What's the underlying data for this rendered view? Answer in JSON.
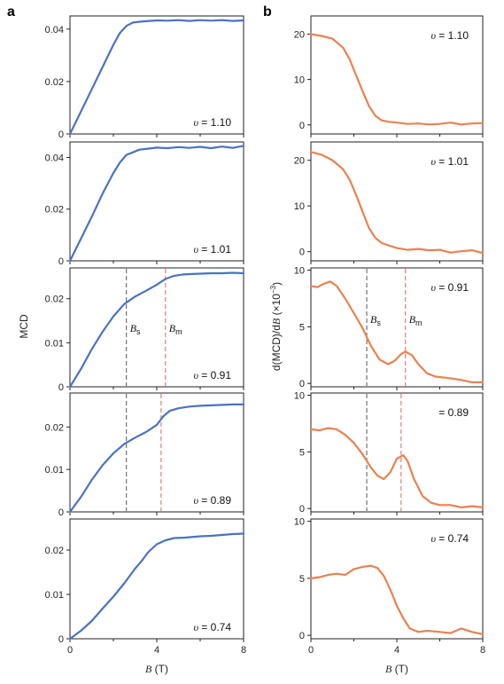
{
  "figure": {
    "panel_labels": [
      "a",
      "b"
    ],
    "left_ylabel": "MCD",
    "right_ylabel_parts": [
      "d(MCD)/d",
      "B",
      " (×10",
      "−3",
      ")"
    ],
    "xlabel_parts": [
      "B",
      " (T)"
    ],
    "colors": {
      "left_line": "#4a72c4",
      "right_line": "#e8824f",
      "bs_line": "#555555",
      "bm_line": "#e06060"
    }
  },
  "chart_data": [
    {
      "type": "line",
      "panel": "a",
      "row": 0,
      "annotation": {
        "symbol": "υ",
        "text": " = 1.10"
      },
      "xlim": [
        0,
        8
      ],
      "xticks": [
        "0",
        "4",
        "8"
      ],
      "ylim": [
        0,
        0.045
      ],
      "yticks": [
        {
          "v": 0,
          "label": "0"
        },
        {
          "v": 0.02,
          "label": "0.02"
        },
        {
          "v": 0.04,
          "label": "0.04"
        }
      ],
      "x": [
        0,
        0.5,
        1,
        1.5,
        2,
        2.3,
        2.6,
        2.9,
        3.2,
        3.5,
        4,
        4.5,
        5,
        5.5,
        6,
        6.5,
        7,
        7.5,
        8
      ],
      "y": [
        0,
        0.0085,
        0.017,
        0.0255,
        0.034,
        0.0385,
        0.0412,
        0.0425,
        0.0428,
        0.043,
        0.0433,
        0.0432,
        0.0434,
        0.0431,
        0.0434,
        0.0432,
        0.0434,
        0.0431,
        0.0433
      ]
    },
    {
      "type": "line",
      "panel": "a",
      "row": 1,
      "annotation": {
        "symbol": "υ",
        "text": " = 1.01"
      },
      "xlim": [
        0,
        8
      ],
      "xticks": [
        "0",
        "4",
        "8"
      ],
      "ylim": [
        0,
        0.046
      ],
      "yticks": [
        {
          "v": 0,
          "label": "0"
        },
        {
          "v": 0.02,
          "label": "0.02"
        },
        {
          "v": 0.04,
          "label": "0.04"
        }
      ],
      "x": [
        0,
        0.5,
        1,
        1.5,
        2,
        2.3,
        2.6,
        2.9,
        3.2,
        3.5,
        4,
        4.5,
        5,
        5.5,
        6,
        6.5,
        7,
        7.5,
        8
      ],
      "y": [
        0,
        0.0085,
        0.017,
        0.026,
        0.034,
        0.038,
        0.041,
        0.042,
        0.043,
        0.0433,
        0.0438,
        0.0436,
        0.044,
        0.0437,
        0.0441,
        0.0436,
        0.0442,
        0.0437,
        0.0445
      ]
    },
    {
      "type": "line",
      "panel": "a",
      "row": 2,
      "annotation": {
        "symbol": "υ",
        "text": " = 0.91"
      },
      "markers": [
        {
          "label": "B",
          "sub": "s",
          "x": 2.6
        },
        {
          "label": "B",
          "sub": "m",
          "x": 4.4
        }
      ],
      "xlim": [
        0,
        8
      ],
      "xticks": [
        "0",
        "4",
        "8"
      ],
      "ylim": [
        0,
        0.027
      ],
      "yticks": [
        {
          "v": 0,
          "label": "0"
        },
        {
          "v": 0.01,
          "label": "0.01"
        },
        {
          "v": 0.02,
          "label": "0.02"
        }
      ],
      "x": [
        0,
        0.5,
        1,
        1.5,
        2,
        2.5,
        3,
        3.5,
        4,
        4.4,
        4.8,
        5.2,
        5.6,
        6,
        6.5,
        7,
        7.5,
        8
      ],
      "y": [
        0,
        0.004,
        0.0085,
        0.0125,
        0.016,
        0.0188,
        0.0205,
        0.0218,
        0.0232,
        0.0245,
        0.0252,
        0.0255,
        0.0256,
        0.0257,
        0.0258,
        0.0258,
        0.0259,
        0.0258
      ]
    },
    {
      "type": "line",
      "panel": "a",
      "row": 3,
      "annotation": {
        "symbol": "υ",
        "text": " = 0.89"
      },
      "markers": [
        {
          "x": 2.6
        },
        {
          "x": 4.2
        }
      ],
      "xlim": [
        0,
        8
      ],
      "xticks": [
        "0",
        "4",
        "8"
      ],
      "ylim": [
        0,
        0.028
      ],
      "yticks": [
        {
          "v": 0,
          "label": "0"
        },
        {
          "v": 0.01,
          "label": "0.01"
        },
        {
          "v": 0.02,
          "label": "0.02"
        }
      ],
      "x": [
        0,
        0.5,
        1,
        1.5,
        2,
        2.5,
        3,
        3.5,
        4,
        4.3,
        4.6,
        5,
        5.5,
        6,
        6.5,
        7,
        7.5,
        8
      ],
      "y": [
        0,
        0.0035,
        0.0075,
        0.011,
        0.0138,
        0.016,
        0.0175,
        0.0188,
        0.0205,
        0.0225,
        0.0238,
        0.0244,
        0.0248,
        0.025,
        0.0251,
        0.0252,
        0.0253,
        0.0253
      ]
    },
    {
      "type": "line",
      "panel": "a",
      "row": 4,
      "annotation": {
        "symbol": "υ",
        "text": " = 0.74"
      },
      "xlim": [
        0,
        8
      ],
      "xticks": [
        "0",
        "4",
        "8"
      ],
      "ylim": [
        0,
        0.027
      ],
      "yticks": [
        {
          "v": 0,
          "label": "0"
        },
        {
          "v": 0.01,
          "label": "0.01"
        },
        {
          "v": 0.02,
          "label": "0.02"
        }
      ],
      "x": [
        0,
        0.5,
        1,
        1.5,
        2,
        2.5,
        3,
        3.3,
        3.6,
        4,
        4.4,
        4.8,
        5.3,
        6,
        6.5,
        7,
        7.5,
        8
      ],
      "y": [
        0,
        0.0018,
        0.004,
        0.0068,
        0.0095,
        0.0125,
        0.0158,
        0.0175,
        0.0195,
        0.0213,
        0.0222,
        0.0227,
        0.0228,
        0.0231,
        0.0232,
        0.0234,
        0.0236,
        0.0237
      ]
    },
    {
      "type": "line",
      "panel": "b",
      "row": 0,
      "annotation": {
        "symbol": "υ",
        "text": " = 1.10"
      },
      "xlim": [
        0,
        8
      ],
      "xticks": [
        "0",
        "4",
        "8"
      ],
      "ylim": [
        -2,
        24
      ],
      "yticks": [
        {
          "v": 0,
          "label": "0"
        },
        {
          "v": 10,
          "label": "10"
        },
        {
          "v": 20,
          "label": "20"
        }
      ],
      "x": [
        0,
        0.5,
        1,
        1.5,
        1.8,
        2.1,
        2.4,
        2.7,
        3,
        3.3,
        3.6,
        4,
        4.5,
        5,
        5.5,
        6,
        6.5,
        7,
        7.5,
        8
      ],
      "y": [
        20,
        19.6,
        19,
        17,
        14.5,
        11,
        7.5,
        4.2,
        2,
        1,
        0.7,
        0.5,
        0.2,
        0.3,
        0.1,
        0.2,
        0.5,
        0.1,
        0.3,
        0.4
      ]
    },
    {
      "type": "line",
      "panel": "b",
      "row": 1,
      "annotation": {
        "symbol": "υ",
        "text": " = 1.01"
      },
      "xlim": [
        0,
        8
      ],
      "xticks": [
        "0",
        "4",
        "8"
      ],
      "ylim": [
        -2,
        24
      ],
      "yticks": [
        {
          "v": 0,
          "label": "0"
        },
        {
          "v": 10,
          "label": "10"
        },
        {
          "v": 20,
          "label": "20"
        }
      ],
      "x": [
        0,
        0.5,
        1,
        1.5,
        1.8,
        2.1,
        2.4,
        2.7,
        3,
        3.3,
        3.6,
        4,
        4.5,
        5,
        5.5,
        6,
        6.5,
        7,
        7.5,
        8
      ],
      "y": [
        21.8,
        21.2,
        20,
        18,
        15.8,
        12.5,
        8.8,
        5.2,
        3,
        1.9,
        1.4,
        0.8,
        0.4,
        0.6,
        0.3,
        0.4,
        -0.2,
        0.1,
        0.3,
        -0.3
      ]
    },
    {
      "type": "line",
      "panel": "b",
      "row": 2,
      "annotation": {
        "symbol": "υ",
        "text": " = 0.91"
      },
      "markers": [
        {
          "label": "B",
          "sub": "s",
          "x": 2.6
        },
        {
          "label": "B",
          "sub": "m",
          "x": 4.4
        }
      ],
      "xlim": [
        0,
        8
      ],
      "xticks": [
        "0",
        "4",
        "8"
      ],
      "ylim": [
        -0.3,
        10.2
      ],
      "yticks": [
        {
          "v": 0,
          "label": "0"
        },
        {
          "v": 5,
          "label": "5"
        },
        {
          "v": 10,
          "label": "10"
        }
      ],
      "x": [
        0,
        0.3,
        0.6,
        0.9,
        1.2,
        1.6,
        2,
        2.4,
        2.8,
        3.2,
        3.6,
        3.9,
        4.2,
        4.4,
        4.7,
        5,
        5.4,
        5.8,
        6.3,
        7,
        7.5,
        8
      ],
      "y": [
        8.6,
        8.5,
        8.8,
        9.0,
        8.6,
        7.5,
        6.2,
        4.9,
        3.3,
        2.1,
        1.7,
        2.0,
        2.6,
        2.8,
        2.5,
        1.7,
        0.9,
        0.6,
        0.5,
        0.3,
        0.1,
        0.1
      ]
    },
    {
      "type": "line",
      "panel": "b",
      "row": 3,
      "annotation": {
        "text": "= 0.89"
      },
      "markers": [
        {
          "x": 2.6
        },
        {
          "x": 4.2
        }
      ],
      "xlim": [
        0,
        8
      ],
      "xticks": [
        "0",
        "4",
        "8"
      ],
      "ylim": [
        -0.3,
        10.2
      ],
      "yticks": [
        {
          "v": 0,
          "label": "0"
        },
        {
          "v": 5,
          "label": "5"
        },
        {
          "v": 10,
          "label": "10"
        }
      ],
      "x": [
        0,
        0.4,
        0.8,
        1.2,
        1.6,
        2,
        2.4,
        2.8,
        3.1,
        3.4,
        3.7,
        4,
        4.3,
        4.5,
        4.8,
        5.2,
        5.6,
        6,
        6.5,
        7,
        7.5,
        8
      ],
      "y": [
        7.0,
        6.9,
        7.1,
        7.0,
        6.5,
        5.8,
        4.8,
        3.6,
        2.9,
        2.6,
        3.2,
        4.4,
        4.7,
        4.2,
        2.6,
        1.1,
        0.5,
        0.3,
        0.3,
        0.1,
        0.2,
        0.1
      ]
    },
    {
      "type": "line",
      "panel": "b",
      "row": 4,
      "annotation": {
        "symbol": "υ",
        "text": " = 0.74"
      },
      "xlim": [
        0,
        8
      ],
      "xticks": [
        "0",
        "4",
        "8"
      ],
      "ylim": [
        -0.3,
        10.2
      ],
      "yticks": [
        {
          "v": 0,
          "label": "0"
        },
        {
          "v": 5,
          "label": "5"
        },
        {
          "v": 10,
          "label": "10"
        }
      ],
      "x": [
        0,
        0.4,
        0.8,
        1.2,
        1.6,
        2,
        2.4,
        2.8,
        3.1,
        3.4,
        3.7,
        4,
        4.3,
        4.6,
        5,
        5.4,
        6,
        6.5,
        7,
        7.5,
        8
      ],
      "y": [
        5.0,
        5.1,
        5.3,
        5.4,
        5.3,
        5.8,
        6.0,
        6.1,
        5.9,
        5.2,
        4.0,
        2.6,
        1.5,
        0.6,
        0.3,
        0.4,
        0.3,
        0.2,
        0.6,
        0.3,
        0.1
      ]
    }
  ]
}
